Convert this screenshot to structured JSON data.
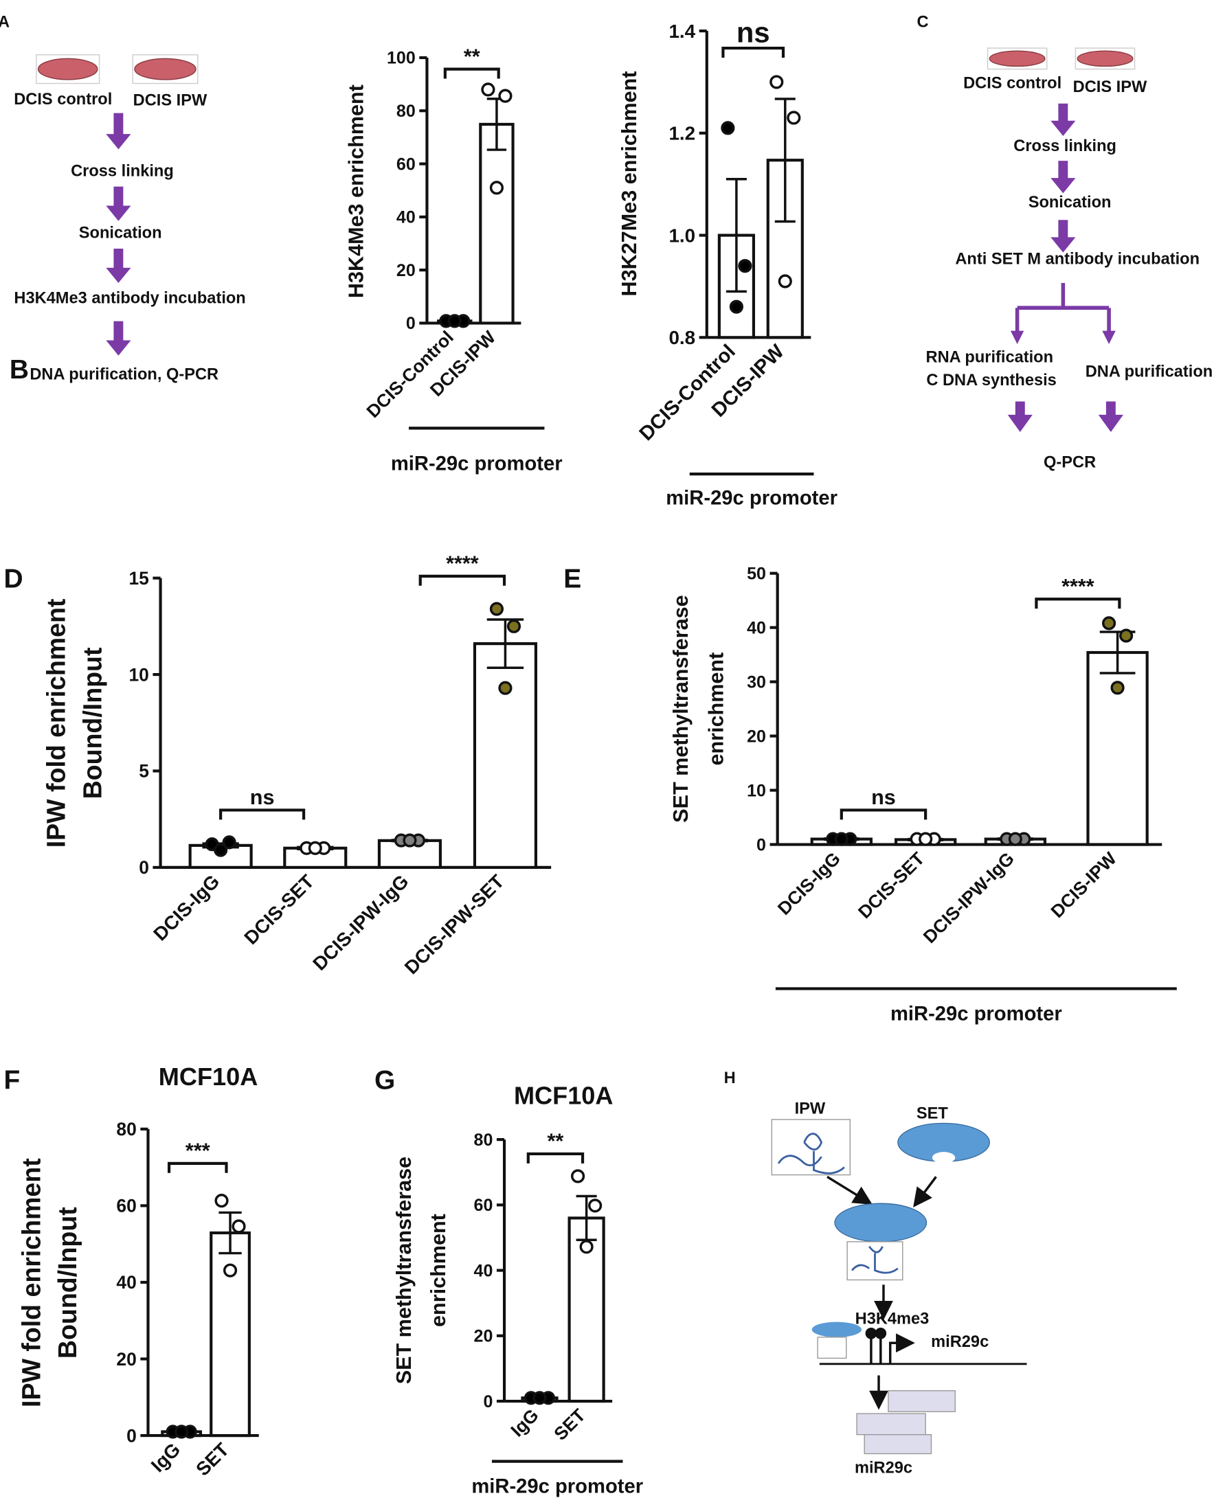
{
  "chart_data": [
    {
      "type": "bar",
      "panel": "B",
      "ylabel": [
        "H3K4Me3 enrichment"
      ],
      "categories": [
        "DCIS-Control",
        "DCIS-IPW"
      ],
      "values": [
        0.8,
        74.9
      ],
      "errors": [
        0.3,
        9.6
      ],
      "points": [
        [
          0.8,
          0.8,
          0.8
        ],
        [
          88,
          85.6,
          51
        ]
      ],
      "point_colors": [
        "#000000",
        "#ffffff"
      ],
      "bar_color": "#ffffff",
      "ylim": [
        0,
        100
      ],
      "yticks": [
        0,
        20,
        40,
        60,
        80,
        100
      ],
      "annotations": [
        "**"
      ],
      "group_label": "miR-29c promoter"
    },
    {
      "type": "bar",
      "ylabel": [
        "H3K27Me3 enrichment"
      ],
      "categories": [
        "DCIS-Control",
        "DCIS-IPW"
      ],
      "values": [
        1.0,
        1.147
      ],
      "errors": [
        0.11,
        0.12
      ],
      "points": [
        [
          1.21,
          0.94,
          0.86
        ],
        [
          1.3,
          1.23,
          0.91
        ]
      ],
      "point_colors": [
        "#000000",
        "#ffffff"
      ],
      "bar_color": "#ffffff",
      "ylim": [
        0.8,
        1.4
      ],
      "yticks": [
        0.8,
        {
          "value": 1,
          "label": "1.0"
        },
        1.2,
        1.4
      ],
      "annotations": [
        "ns"
      ],
      "group_label": "miR-29c promoter"
    },
    {
      "type": "bar",
      "panel": "D",
      "ylabel": [
        "IPW fold enrichment",
        "Bound/Input"
      ],
      "categories": [
        "DCIS-IgG",
        "DCIS-SET",
        "DCIS-IPW-IgG",
        "DCIS-IPW-SET"
      ],
      "values": [
        1.14,
        1.0,
        1.39,
        11.6
      ],
      "errors": [
        0.1,
        0.05,
        0.03,
        1.25
      ],
      "points": [
        [
          1.2,
          1.3,
          0.9
        ],
        [
          1,
          1,
          1
        ],
        [
          1.4,
          1.4,
          1.4
        ],
        [
          13.4,
          12.5,
          9.3
        ]
      ],
      "point_colors": [
        "#000000",
        "#ffffff",
        "#808080",
        "#7a7020"
      ],
      "bar_color": "#ffffff",
      "ylim": [
        0,
        15
      ],
      "yticks": [
        0,
        5,
        10,
        15
      ],
      "annotations": [
        "ns",
        "****"
      ]
    },
    {
      "type": "bar",
      "panel": "E",
      "ylabel": [
        "SET methyltransferase",
        "enrichment"
      ],
      "categories": [
        "DCIS-IgG",
        "DCIS-SET",
        "DCIS-IPW-IgG",
        "DCIS-IPW"
      ],
      "values": [
        1.0,
        0.9,
        1.0,
        35.4
      ],
      "errors": [
        0.1,
        0.1,
        0.1,
        3.8
      ],
      "points": [
        [
          1,
          1,
          1
        ],
        [
          1,
          1,
          1
        ],
        [
          1,
          1,
          1
        ],
        [
          40.8,
          38.5,
          28.9
        ]
      ],
      "point_colors": [
        "#000000",
        "#ffffff",
        "#808080",
        "#7a7020"
      ],
      "bar_color": "#ffffff",
      "ylim": [
        0,
        50
      ],
      "yticks": [
        0,
        10,
        20,
        30,
        40,
        50
      ],
      "annotations": [
        "ns",
        "****"
      ],
      "group_label": "miR-29c promoter"
    },
    {
      "type": "bar",
      "panel": "F",
      "title": "MCF10A",
      "ylabel": [
        "IPW fold enrichment",
        "Bound/Input"
      ],
      "categories": [
        "IgG",
        "SET"
      ],
      "values": [
        1.0,
        52.9
      ],
      "errors": [
        0.1,
        5.3
      ],
      "points": [
        [
          1,
          1,
          1
        ],
        [
          61.3,
          54.6,
          43.1
        ]
      ],
      "point_colors": [
        "#000000",
        "#ffffff"
      ],
      "bar_color": "#ffffff",
      "ylim": [
        0,
        80
      ],
      "yticks": [
        0,
        20,
        40,
        60,
        80
      ],
      "annotations": [
        "***"
      ]
    },
    {
      "type": "bar",
      "panel": "G",
      "title": "MCF10A",
      "ylabel": [
        "SET methyltransferase",
        "enrichment"
      ],
      "categories": [
        "IgG",
        "SET"
      ],
      "values": [
        1.0,
        56
      ],
      "errors": [
        0.1,
        6.7
      ],
      "points": [
        [
          1,
          1,
          1
        ],
        [
          68.8,
          59.8,
          47.2
        ]
      ],
      "point_colors": [
        "#000000",
        "#ffffff"
      ],
      "bar_color": "#ffffff",
      "ylim": [
        0,
        80
      ],
      "yticks": [
        0,
        20,
        40,
        60,
        80
      ],
      "annotations": [
        "**"
      ],
      "group_label": "miR-29c promoter"
    }
  ],
  "diagram_a": {
    "panel": "A",
    "dishes": [
      "DCIS control",
      "DCIS IPW"
    ],
    "steps": [
      "Cross linking",
      "Sonication",
      "H3K4Me3 antibody incubation",
      "DNA purification, Q-PCR"
    ]
  },
  "diagram_c": {
    "panel": "C",
    "dishes": [
      "DCIS control",
      "DCIS IPW"
    ],
    "steps": [
      "Cross linking",
      "Sonication",
      "Anti SET M antibody incubation"
    ],
    "branch_left": [
      "RNA purification",
      "C DNA synthesis"
    ],
    "branch_right": "DNA purification",
    "end": "Q-PCR"
  },
  "diagram_h": {
    "panel": "H",
    "ipw": "IPW",
    "set": "SET",
    "mark": "H3K4me3",
    "gene": "miR29c",
    "product": "miR29c"
  }
}
